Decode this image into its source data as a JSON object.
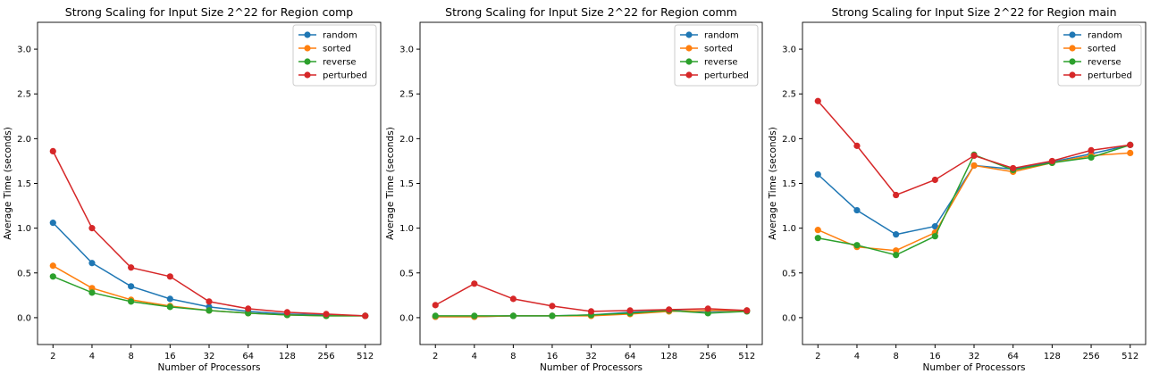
{
  "chart_data": [
    {
      "type": "line",
      "title": "Strong Scaling for Input Size 2^22 for Region comp",
      "xlabel": "Number of Processors",
      "ylabel": "Average Time (seconds)",
      "categories": [
        "2",
        "4",
        "8",
        "16",
        "32",
        "64",
        "128",
        "256",
        "512"
      ],
      "ylim": [
        -0.3,
        3.3
      ],
      "yticks": [
        "0.0",
        "0.5",
        "1.0",
        "1.5",
        "2.0",
        "2.5",
        "3.0"
      ],
      "legend_loc": "top-right",
      "grid": false,
      "series": [
        {
          "name": "random",
          "color": "#1f77b4",
          "values": [
            1.06,
            0.61,
            0.35,
            0.21,
            0.12,
            0.07,
            0.04,
            0.03,
            0.02
          ]
        },
        {
          "name": "sorted",
          "color": "#ff7f0e",
          "values": [
            0.58,
            0.33,
            0.2,
            0.13,
            0.08,
            0.05,
            0.03,
            0.02,
            0.02
          ]
        },
        {
          "name": "reverse",
          "color": "#2ca02c",
          "values": [
            0.46,
            0.28,
            0.18,
            0.12,
            0.08,
            0.05,
            0.03,
            0.02,
            0.02
          ]
        },
        {
          "name": "perturbed",
          "color": "#d62728",
          "values": [
            1.86,
            1.0,
            0.56,
            0.46,
            0.18,
            0.1,
            0.06,
            0.04,
            0.02
          ]
        }
      ]
    },
    {
      "type": "line",
      "title": "Strong Scaling for Input Size 2^22 for Region comm",
      "xlabel": "Number of Processors",
      "ylabel": "Average Time (seconds)",
      "categories": [
        "2",
        "4",
        "8",
        "16",
        "32",
        "64",
        "128",
        "256",
        "512"
      ],
      "ylim": [
        -0.3,
        3.3
      ],
      "yticks": [
        "0.0",
        "0.5",
        "1.0",
        "1.5",
        "2.0",
        "2.5",
        "3.0"
      ],
      "legend_loc": "top-right",
      "grid": false,
      "series": [
        {
          "name": "random",
          "color": "#1f77b4",
          "values": [
            0.01,
            0.01,
            0.02,
            0.02,
            0.03,
            0.06,
            0.08,
            0.07,
            0.08
          ]
        },
        {
          "name": "sorted",
          "color": "#ff7f0e",
          "values": [
            0.01,
            0.01,
            0.02,
            0.02,
            0.02,
            0.04,
            0.07,
            0.08,
            0.08
          ]
        },
        {
          "name": "reverse",
          "color": "#2ca02c",
          "values": [
            0.02,
            0.02,
            0.02,
            0.02,
            0.03,
            0.05,
            0.08,
            0.05,
            0.07
          ]
        },
        {
          "name": "perturbed",
          "color": "#d62728",
          "values": [
            0.14,
            0.38,
            0.21,
            0.13,
            0.07,
            0.08,
            0.09,
            0.1,
            0.08
          ]
        }
      ]
    },
    {
      "type": "line",
      "title": "Strong Scaling for Input Size 2^22 for Region main",
      "xlabel": "Number of Processors",
      "ylabel": "Average Time (seconds)",
      "categories": [
        "2",
        "4",
        "8",
        "16",
        "32",
        "64",
        "128",
        "256",
        "512"
      ],
      "ylim": [
        -0.3,
        3.3
      ],
      "yticks": [
        "0.0",
        "0.5",
        "1.0",
        "1.5",
        "2.0",
        "2.5",
        "3.0"
      ],
      "legend_loc": "top-right",
      "grid": false,
      "series": [
        {
          "name": "random",
          "color": "#1f77b4",
          "values": [
            1.6,
            1.2,
            0.93,
            1.02,
            1.7,
            1.66,
            1.74,
            1.83,
            1.93
          ]
        },
        {
          "name": "sorted",
          "color": "#ff7f0e",
          "values": [
            0.98,
            0.79,
            0.75,
            0.95,
            1.7,
            1.63,
            1.73,
            1.81,
            1.84
          ]
        },
        {
          "name": "reverse",
          "color": "#2ca02c",
          "values": [
            0.89,
            0.81,
            0.7,
            0.91,
            1.82,
            1.65,
            1.73,
            1.79,
            1.93
          ]
        },
        {
          "name": "perturbed",
          "color": "#d62728",
          "values": [
            2.42,
            1.92,
            1.37,
            1.54,
            1.81,
            1.67,
            1.75,
            1.87,
            1.93
          ]
        }
      ]
    }
  ]
}
